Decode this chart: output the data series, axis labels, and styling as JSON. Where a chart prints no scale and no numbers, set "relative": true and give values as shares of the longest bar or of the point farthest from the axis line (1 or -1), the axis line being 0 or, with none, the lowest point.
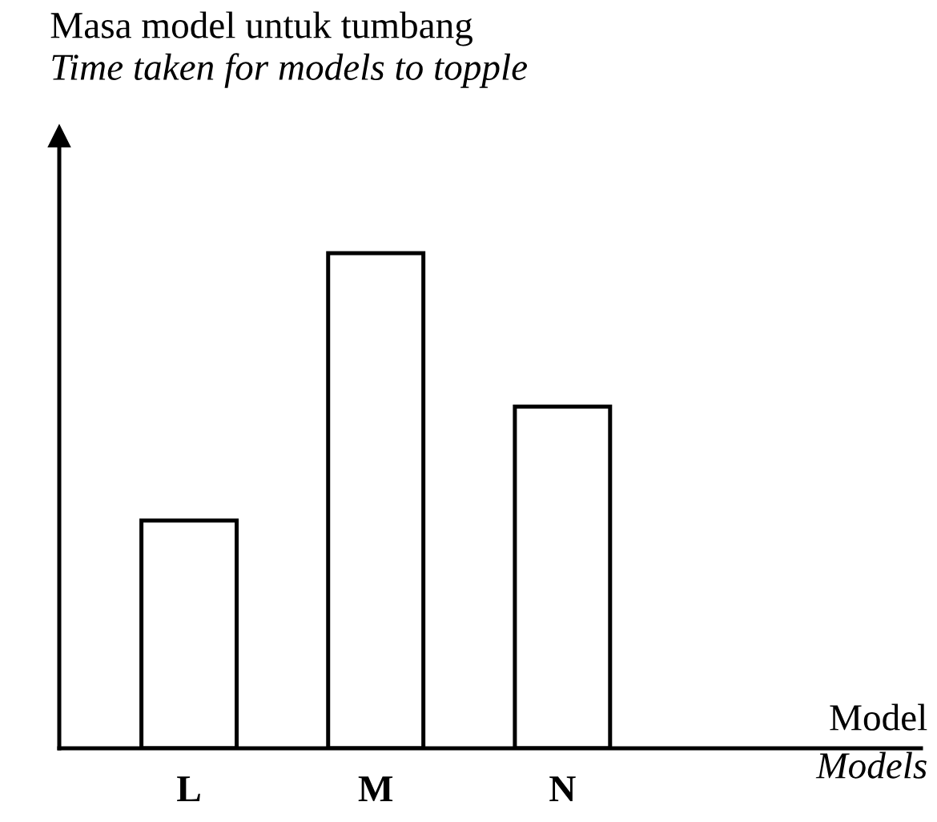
{
  "chart_data": {
    "type": "bar",
    "relative": true,
    "ylabel": "Masa model untuk tumbang\nTime taken for models to topple",
    "xlabel": "Model\nModels",
    "categories": [
      "L",
      "M",
      "N"
    ],
    "values": [
      0.46,
      1,
      0.69
    ],
    "color": "#ffffff",
    "grid": false,
    "legend": false
  }
}
